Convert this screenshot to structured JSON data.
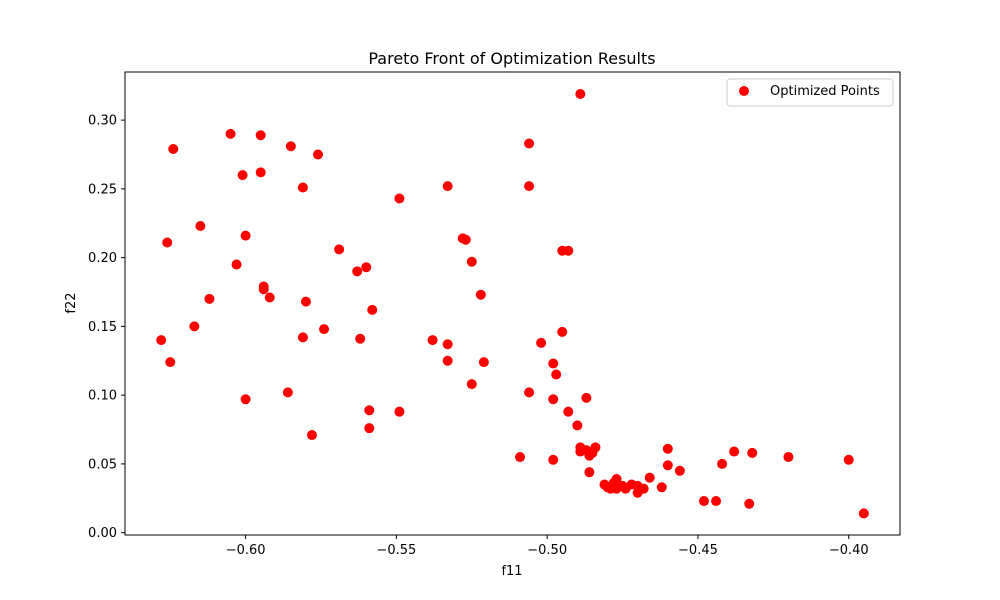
{
  "chart_data": {
    "type": "scatter",
    "title": "Pareto Front of Optimization Results",
    "xlabel": "f11",
    "ylabel": "f22",
    "xlim": [
      -0.64,
      -0.383
    ],
    "ylim": [
      -0.0017,
      0.335
    ],
    "xticks": [
      -0.6,
      -0.55,
      -0.5,
      -0.45,
      -0.4
    ],
    "xtick_labels": [
      "−0.60",
      "−0.55",
      "−0.50",
      "−0.45",
      "−0.40"
    ],
    "yticks": [
      0.0,
      0.05,
      0.1,
      0.15,
      0.2,
      0.25,
      0.3
    ],
    "ytick_labels": [
      "0.00",
      "0.05",
      "0.10",
      "0.15",
      "0.20",
      "0.25",
      "0.30"
    ],
    "grid": false,
    "legend": {
      "position": "upper right",
      "entries": [
        "Optimized Points"
      ]
    },
    "series": [
      {
        "name": "Optimized Points",
        "color": "#ff0000",
        "points": [
          [
            -0.605,
            0.29
          ],
          [
            -0.595,
            0.289
          ],
          [
            -0.624,
            0.279
          ],
          [
            -0.585,
            0.281
          ],
          [
            -0.576,
            0.275
          ],
          [
            -0.601,
            0.26
          ],
          [
            -0.595,
            0.262
          ],
          [
            -0.581,
            0.251
          ],
          [
            -0.615,
            0.223
          ],
          [
            -0.626,
            0.211
          ],
          [
            -0.6,
            0.216
          ],
          [
            -0.569,
            0.206
          ],
          [
            -0.603,
            0.195
          ],
          [
            -0.56,
            0.193
          ],
          [
            -0.563,
            0.19
          ],
          [
            -0.594,
            0.179
          ],
          [
            -0.594,
            0.177
          ],
          [
            -0.592,
            0.171
          ],
          [
            -0.612,
            0.17
          ],
          [
            -0.58,
            0.168
          ],
          [
            -0.558,
            0.162
          ],
          [
            -0.617,
            0.15
          ],
          [
            -0.574,
            0.148
          ],
          [
            -0.628,
            0.14
          ],
          [
            -0.581,
            0.142
          ],
          [
            -0.562,
            0.141
          ],
          [
            -0.625,
            0.124
          ],
          [
            -0.586,
            0.102
          ],
          [
            -0.6,
            0.097
          ],
          [
            -0.559,
            0.089
          ],
          [
            -0.559,
            0.076
          ],
          [
            -0.578,
            0.071
          ],
          [
            -0.549,
            0.243
          ],
          [
            -0.533,
            0.252
          ],
          [
            -0.528,
            0.214
          ],
          [
            -0.527,
            0.213
          ],
          [
            -0.525,
            0.197
          ],
          [
            -0.522,
            0.173
          ],
          [
            -0.538,
            0.14
          ],
          [
            -0.533,
            0.137
          ],
          [
            -0.533,
            0.125
          ],
          [
            -0.521,
            0.124
          ],
          [
            -0.525,
            0.108
          ],
          [
            -0.549,
            0.088
          ],
          [
            -0.506,
            0.283
          ],
          [
            -0.506,
            0.252
          ],
          [
            -0.489,
            0.319
          ],
          [
            -0.495,
            0.205
          ],
          [
            -0.493,
            0.205
          ],
          [
            -0.495,
            0.146
          ],
          [
            -0.502,
            0.138
          ],
          [
            -0.498,
            0.123
          ],
          [
            -0.497,
            0.115
          ],
          [
            -0.506,
            0.102
          ],
          [
            -0.487,
            0.098
          ],
          [
            -0.498,
            0.097
          ],
          [
            -0.493,
            0.088
          ],
          [
            -0.49,
            0.078
          ],
          [
            -0.509,
            0.055
          ],
          [
            -0.498,
            0.053
          ],
          [
            -0.489,
            0.059
          ],
          [
            -0.489,
            0.062
          ],
          [
            -0.487,
            0.06
          ],
          [
            -0.484,
            0.062
          ],
          [
            -0.485,
            0.058
          ],
          [
            -0.486,
            0.056
          ],
          [
            -0.486,
            0.044
          ],
          [
            -0.481,
            0.035
          ],
          [
            -0.48,
            0.033
          ],
          [
            -0.479,
            0.032
          ],
          [
            -0.478,
            0.036
          ],
          [
            -0.477,
            0.039
          ],
          [
            -0.477,
            0.032
          ],
          [
            -0.475,
            0.034
          ],
          [
            -0.474,
            0.032
          ],
          [
            -0.472,
            0.035
          ],
          [
            -0.47,
            0.034
          ],
          [
            -0.47,
            0.029
          ],
          [
            -0.468,
            0.032
          ],
          [
            -0.466,
            0.04
          ],
          [
            -0.462,
            0.033
          ],
          [
            -0.46,
            0.061
          ],
          [
            -0.46,
            0.049
          ],
          [
            -0.456,
            0.045
          ],
          [
            -0.448,
            0.023
          ],
          [
            -0.444,
            0.023
          ],
          [
            -0.442,
            0.05
          ],
          [
            -0.438,
            0.059
          ],
          [
            -0.433,
            0.021
          ],
          [
            -0.432,
            0.058
          ],
          [
            -0.42,
            0.055
          ],
          [
            -0.4,
            0.053
          ],
          [
            -0.395,
            0.014
          ]
        ]
      }
    ]
  }
}
